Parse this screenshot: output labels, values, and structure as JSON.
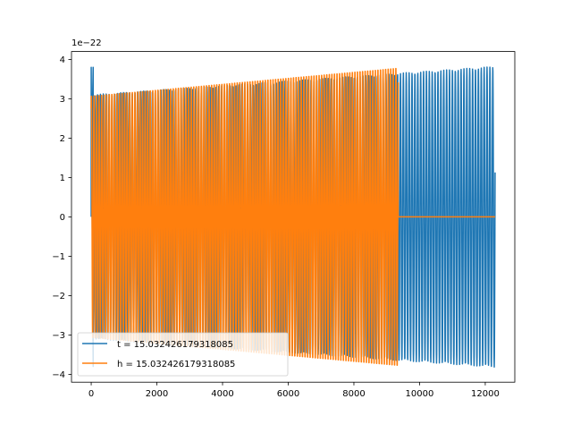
{
  "chart_data": {
    "type": "line",
    "title": "",
    "xlabel": "",
    "ylabel": "",
    "offset_label": "1e−22",
    "xlim": [
      -600,
      12900
    ],
    "ylim": [
      -4.2,
      4.2
    ],
    "y_scale_exponent": -22,
    "xticks": [
      0,
      2000,
      4000,
      6000,
      8000,
      10000,
      12000
    ],
    "xtick_labels": [
      "0",
      "2000",
      "4000",
      "6000",
      "8000",
      "10000",
      "12000"
    ],
    "yticks": [
      -4,
      -3,
      -2,
      -1,
      0,
      1,
      2,
      3,
      4
    ],
    "ytick_labels": [
      "−4",
      "−3",
      "−2",
      "−1",
      "0",
      "1",
      "2",
      "3",
      "4"
    ],
    "grid": false,
    "legend_position": "lower-left",
    "series": [
      {
        "name": "t = 15.032426179318085",
        "color": "#1f77b4",
        "signal": "oscillating chirp",
        "x_start": 0,
        "x_end": 12300,
        "amplitude_start": 3.1,
        "amplitude_end": 3.82,
        "initial_spike": 3.8,
        "cycles": 140
      },
      {
        "name": "h = 15.032426179318085",
        "color": "#ff7f0e",
        "signal": "oscillating chirp then flat zero",
        "x_start": 0,
        "x_end": 9350,
        "amplitude_start": 3.1,
        "amplitude_end": 3.82,
        "cycles": 120,
        "flat_zero_from": 9350,
        "flat_zero_to": 12300
      }
    ]
  }
}
